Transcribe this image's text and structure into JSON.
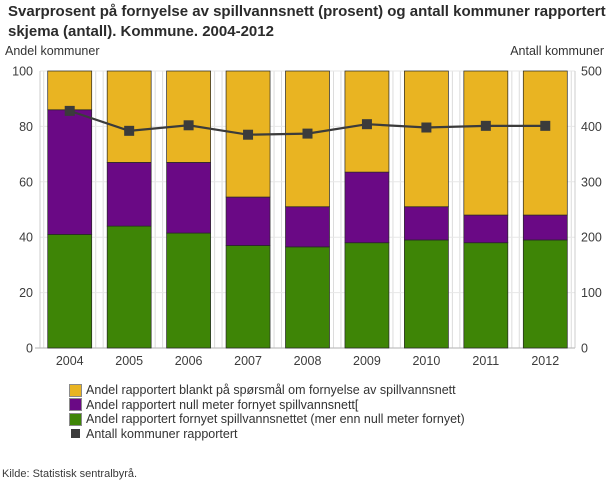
{
  "title": "Svarprosent på fornyelse av spillvannsnett (prosent) og antall kommuner rapportert skjema (antall). Kommune. 2004-2012",
  "source": "Kilde: Statistisk sentralbyrå.",
  "axes": {
    "left_title": "Andel kommuner",
    "right_title": "Antall kommuner"
  },
  "legend": {
    "items": [
      {
        "label": "Andel rapportert blankt på spørsmål om fornyelse av spillvannsnett",
        "color": "#e9b422",
        "type": "box"
      },
      {
        "label": "Andel rapportert null meter fornyet spillvannsnett[",
        "color": "#6a0985",
        "type": "box"
      },
      {
        "label": "Andel rapportert fornyet spillvannsnettet (mer enn null meter fornyet)",
        "color": "#3e8506",
        "type": "box"
      },
      {
        "label": "Antall kommuner rapportert",
        "color": "#3b3b3b",
        "type": "marker"
      }
    ]
  },
  "chart_data": {
    "type": "bar",
    "stacked": true,
    "title": "Svarprosent på fornyelse av spillvannsnett (prosent) og antall kommuner rapportert skjema (antall). Kommune. 2004-2012",
    "categories": [
      "2004",
      "2005",
      "2006",
      "2007",
      "2008",
      "2009",
      "2010",
      "2011",
      "2012"
    ],
    "series_order": "bottom-to-top",
    "series": [
      {
        "name": "Andel rapportert fornyet spillvannsnettet (mer enn null meter fornyet)",
        "color": "#3e8506",
        "values": [
          41,
          44,
          41.5,
          37,
          36.5,
          38,
          39,
          38,
          39
        ]
      },
      {
        "name": "Andel rapportert null meter fornyet spillvannsnett[",
        "color": "#6a0985",
        "values": [
          45,
          23,
          25.5,
          17.5,
          14.5,
          25.5,
          12,
          10,
          9
        ]
      },
      {
        "name": "Andel rapportert blankt på spørsmål om fornyelse av spillvannsnett",
        "color": "#e9b422",
        "values": [
          14,
          33,
          33,
          45.5,
          49,
          36.5,
          49,
          52,
          52
        ]
      }
    ],
    "line_series": {
      "name": "Antall kommuner rapportert",
      "color": "#3b3b3b",
      "marker": "square",
      "axis": "right",
      "values": [
        428,
        392,
        402,
        385,
        387,
        404,
        398,
        401,
        401
      ]
    },
    "left_axis": {
      "title": "Andel kommuner",
      "min": 0,
      "max": 100,
      "step": 20
    },
    "right_axis": {
      "title": "Antall kommuner",
      "min": 0,
      "max": 500,
      "step": 100
    },
    "grid": true,
    "legend_position": "bottom"
  }
}
